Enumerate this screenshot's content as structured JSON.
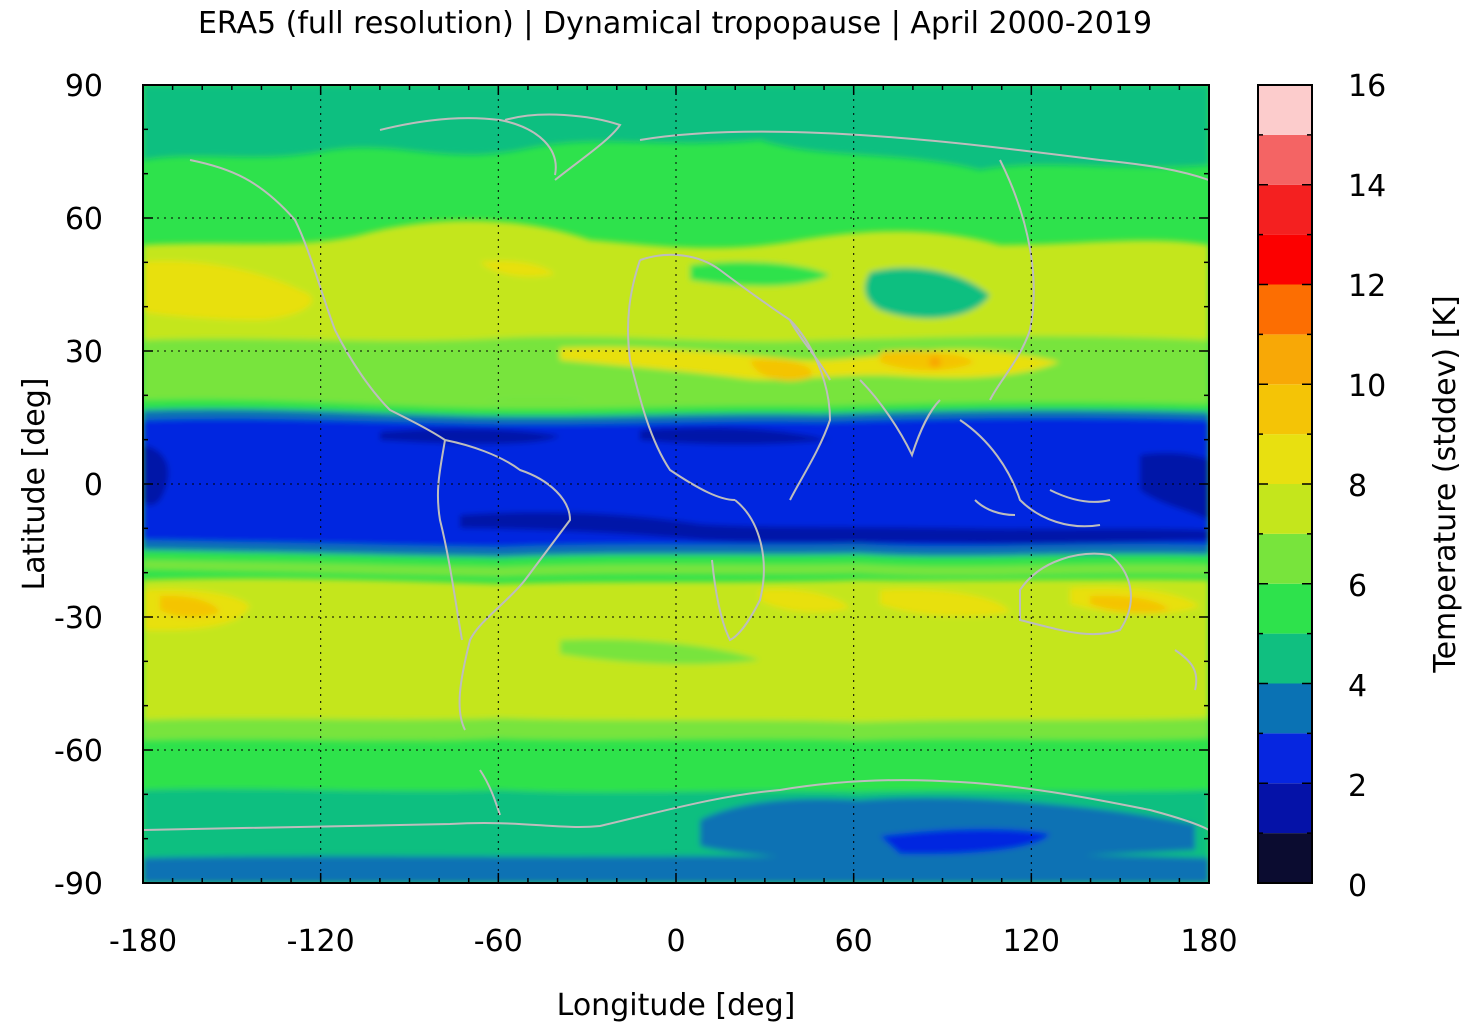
{
  "title": "ERA5 (full resolution) | Dynamical tropopause | April 2000-2019",
  "map": {
    "xlabel": "Longitude [deg]",
    "ylabel": "Latitude [deg]",
    "xlim": [
      -180,
      180
    ],
    "ylim": [
      -90,
      90
    ],
    "x_ticks": [
      "-180",
      "-120",
      "-60",
      "0",
      "60",
      "120",
      "180"
    ],
    "y_ticks": [
      "90",
      "60",
      "30",
      "0",
      "-30",
      "-60",
      "-90"
    ],
    "grid": true,
    "coastline_color": "#bdbdbd"
  },
  "colorbar": {
    "label": "Temperature (stddev) [K]",
    "range": [
      0,
      16
    ],
    "ticks": [
      "16",
      "14",
      "12",
      "10",
      "8",
      "6",
      "4",
      "2",
      "0"
    ],
    "levels": [
      {
        "from": 0,
        "to": 1,
        "color": "#0b0c30"
      },
      {
        "from": 1,
        "to": 2,
        "color": "#0512a8"
      },
      {
        "from": 2,
        "to": 3,
        "color": "#0626e0"
      },
      {
        "from": 3,
        "to": 4,
        "color": "#0a72b4"
      },
      {
        "from": 4,
        "to": 5,
        "color": "#10bf80"
      },
      {
        "from": 5,
        "to": 6,
        "color": "#2ee24c"
      },
      {
        "from": 6,
        "to": 7,
        "color": "#78e43c"
      },
      {
        "from": 7,
        "to": 8,
        "color": "#c4e61c"
      },
      {
        "from": 8,
        "to": 9,
        "color": "#e8e010"
      },
      {
        "from": 9,
        "to": 10,
        "color": "#f4c406"
      },
      {
        "from": 10,
        "to": 11,
        "color": "#f8a806"
      },
      {
        "from": 11,
        "to": 12,
        "color": "#fc6e02"
      },
      {
        "from": 12,
        "to": 13,
        "color": "#fc0000"
      },
      {
        "from": 13,
        "to": 14,
        "color": "#f42020"
      },
      {
        "from": 14,
        "to": 15,
        "color": "#f46464"
      },
      {
        "from": 15,
        "to": 16,
        "color": "#fccccc"
      }
    ]
  }
}
